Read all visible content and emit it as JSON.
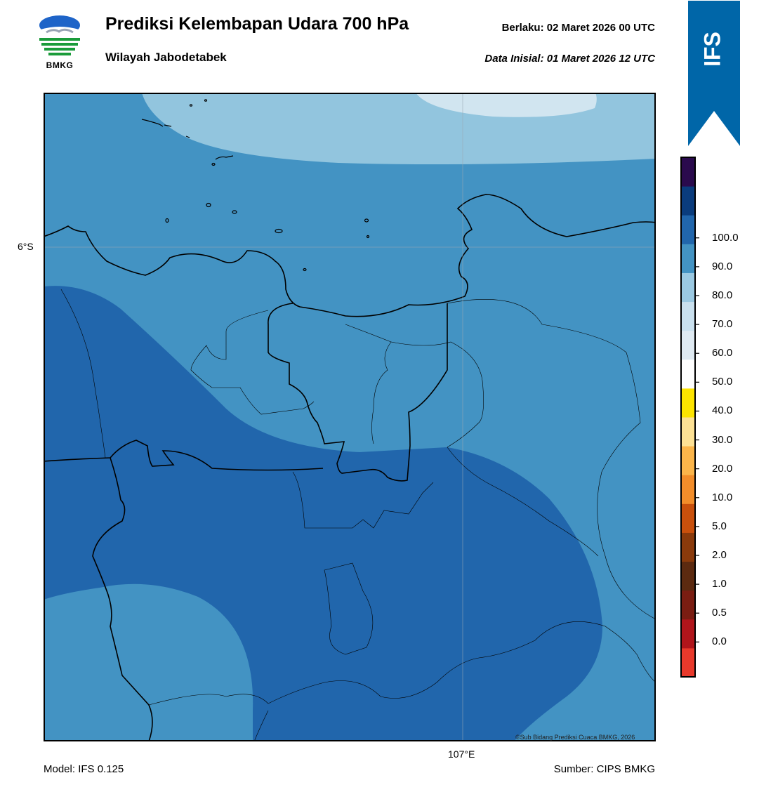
{
  "header": {
    "title": "Prediksi Kelembapan Udara 700 hPa",
    "subtitle": "Wilayah Jabodetabek",
    "valid_label": "Berlaku:  02 Maret 2026 00 UTC",
    "initial_label": "Data Inisial:  01 Maret 2026 12 UTC"
  },
  "logo": {
    "icon": "bmkg-logo-icon",
    "text": "BMKG"
  },
  "banner": {
    "text": "IFS",
    "color": "#0066a8"
  },
  "map": {
    "lat_label": "6°S",
    "lon_label": "107°E",
    "credit": "©Sub Bidang Prediksi Cuaca BMKG, 2026"
  },
  "footer": {
    "model": "Model: IFS 0.125",
    "source": "Sumber: CIPS BMKG"
  },
  "colorbar": {
    "colors": [
      "#e8392b",
      "#b0151b",
      "#7a1d12",
      "#5c2a10",
      "#8a3a0b",
      "#c9500c",
      "#f28d2a",
      "#fbb54a",
      "#fde194",
      "#fde400",
      "#ffffff",
      "#dfeaf2",
      "#c9e0ee",
      "#9bc9e2",
      "#4393c3",
      "#2166ac",
      "#0a3c7d",
      "#2a0a4d"
    ],
    "labels": [
      "0.0",
      "0.5",
      "1.0",
      "2.0",
      "5.0",
      "10.0",
      "20.0",
      "30.0",
      "40.0",
      "50.0",
      "60.0",
      "70.0",
      "80.0",
      "90.0",
      "100.0"
    ]
  }
}
